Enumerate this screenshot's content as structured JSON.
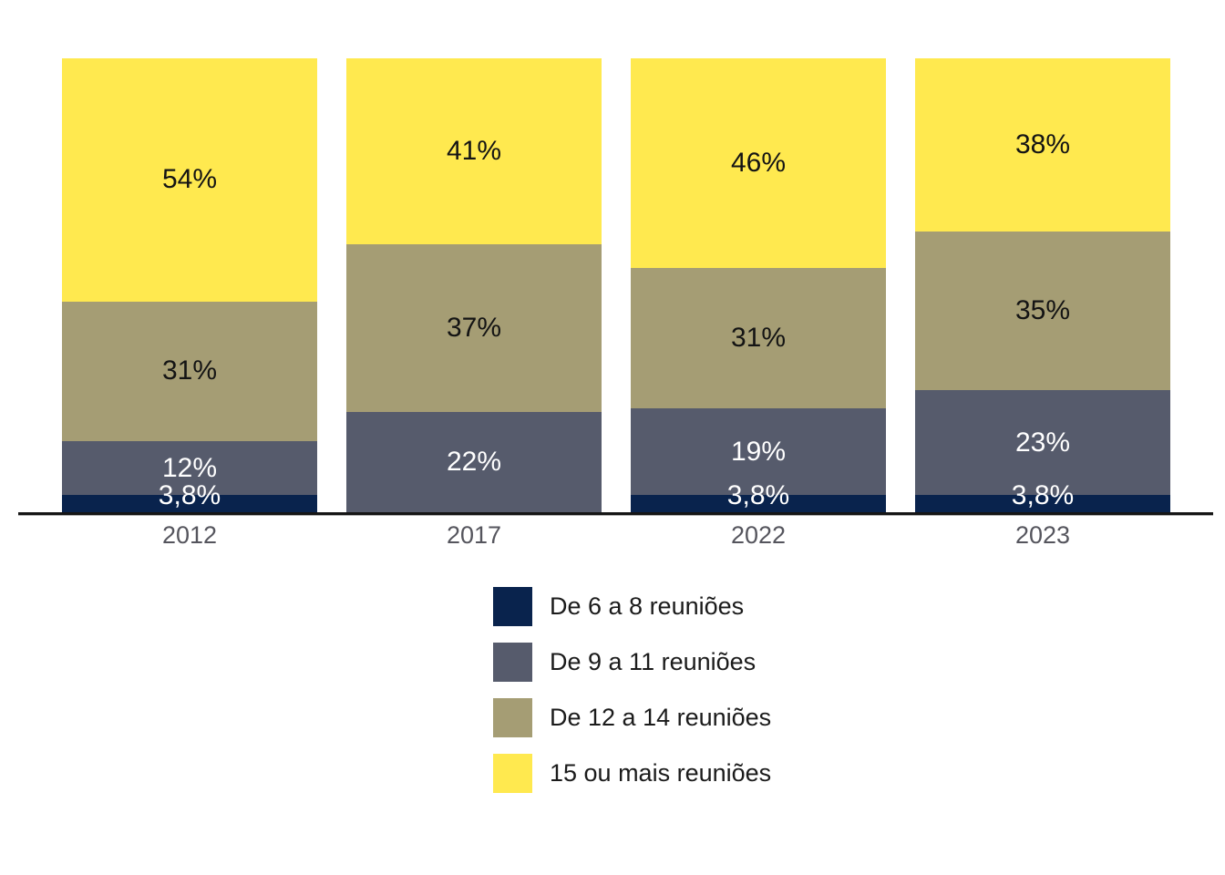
{
  "chart_data": {
    "type": "bar",
    "variant": "stacked-percentage",
    "title": "",
    "xlabel": "",
    "ylabel": "",
    "unit": "%",
    "ylim": [
      0,
      100
    ],
    "grid": false,
    "legend_position": "bottom-center",
    "axis_color": "#161616",
    "background_color": "#ffffff",
    "category_label_color": "#55555d",
    "categories": [
      "2012",
      "2017",
      "2022",
      "2023"
    ],
    "series": [
      {
        "name": "De 6 a 8 reuniões",
        "color": "#09234d",
        "label_color": "#ffffff",
        "values": [
          3.8,
          0,
          3.8,
          3.8
        ],
        "labels": [
          "3,8%",
          "",
          "3,8%",
          "3,8%"
        ]
      },
      {
        "name": "De 9 a 11 reuniões",
        "color": "#565b6c",
        "label_color": "#ffffff",
        "values": [
          12,
          22,
          19,
          23
        ],
        "labels": [
          "12%",
          "22%",
          "19%",
          "23%"
        ]
      },
      {
        "name": "De 12 a 14 reuniões",
        "color": "#a59d74",
        "label_color": "#141414",
        "values": [
          31,
          37,
          31,
          35
        ],
        "labels": [
          "31%",
          "37%",
          "31%",
          "35%"
        ]
      },
      {
        "name": "15 ou mais reuniões",
        "color": "#ffe94f",
        "label_color": "#141414",
        "values": [
          54,
          41,
          46,
          38
        ],
        "labels": [
          "54%",
          "41%",
          "46%",
          "38%"
        ]
      }
    ]
  }
}
